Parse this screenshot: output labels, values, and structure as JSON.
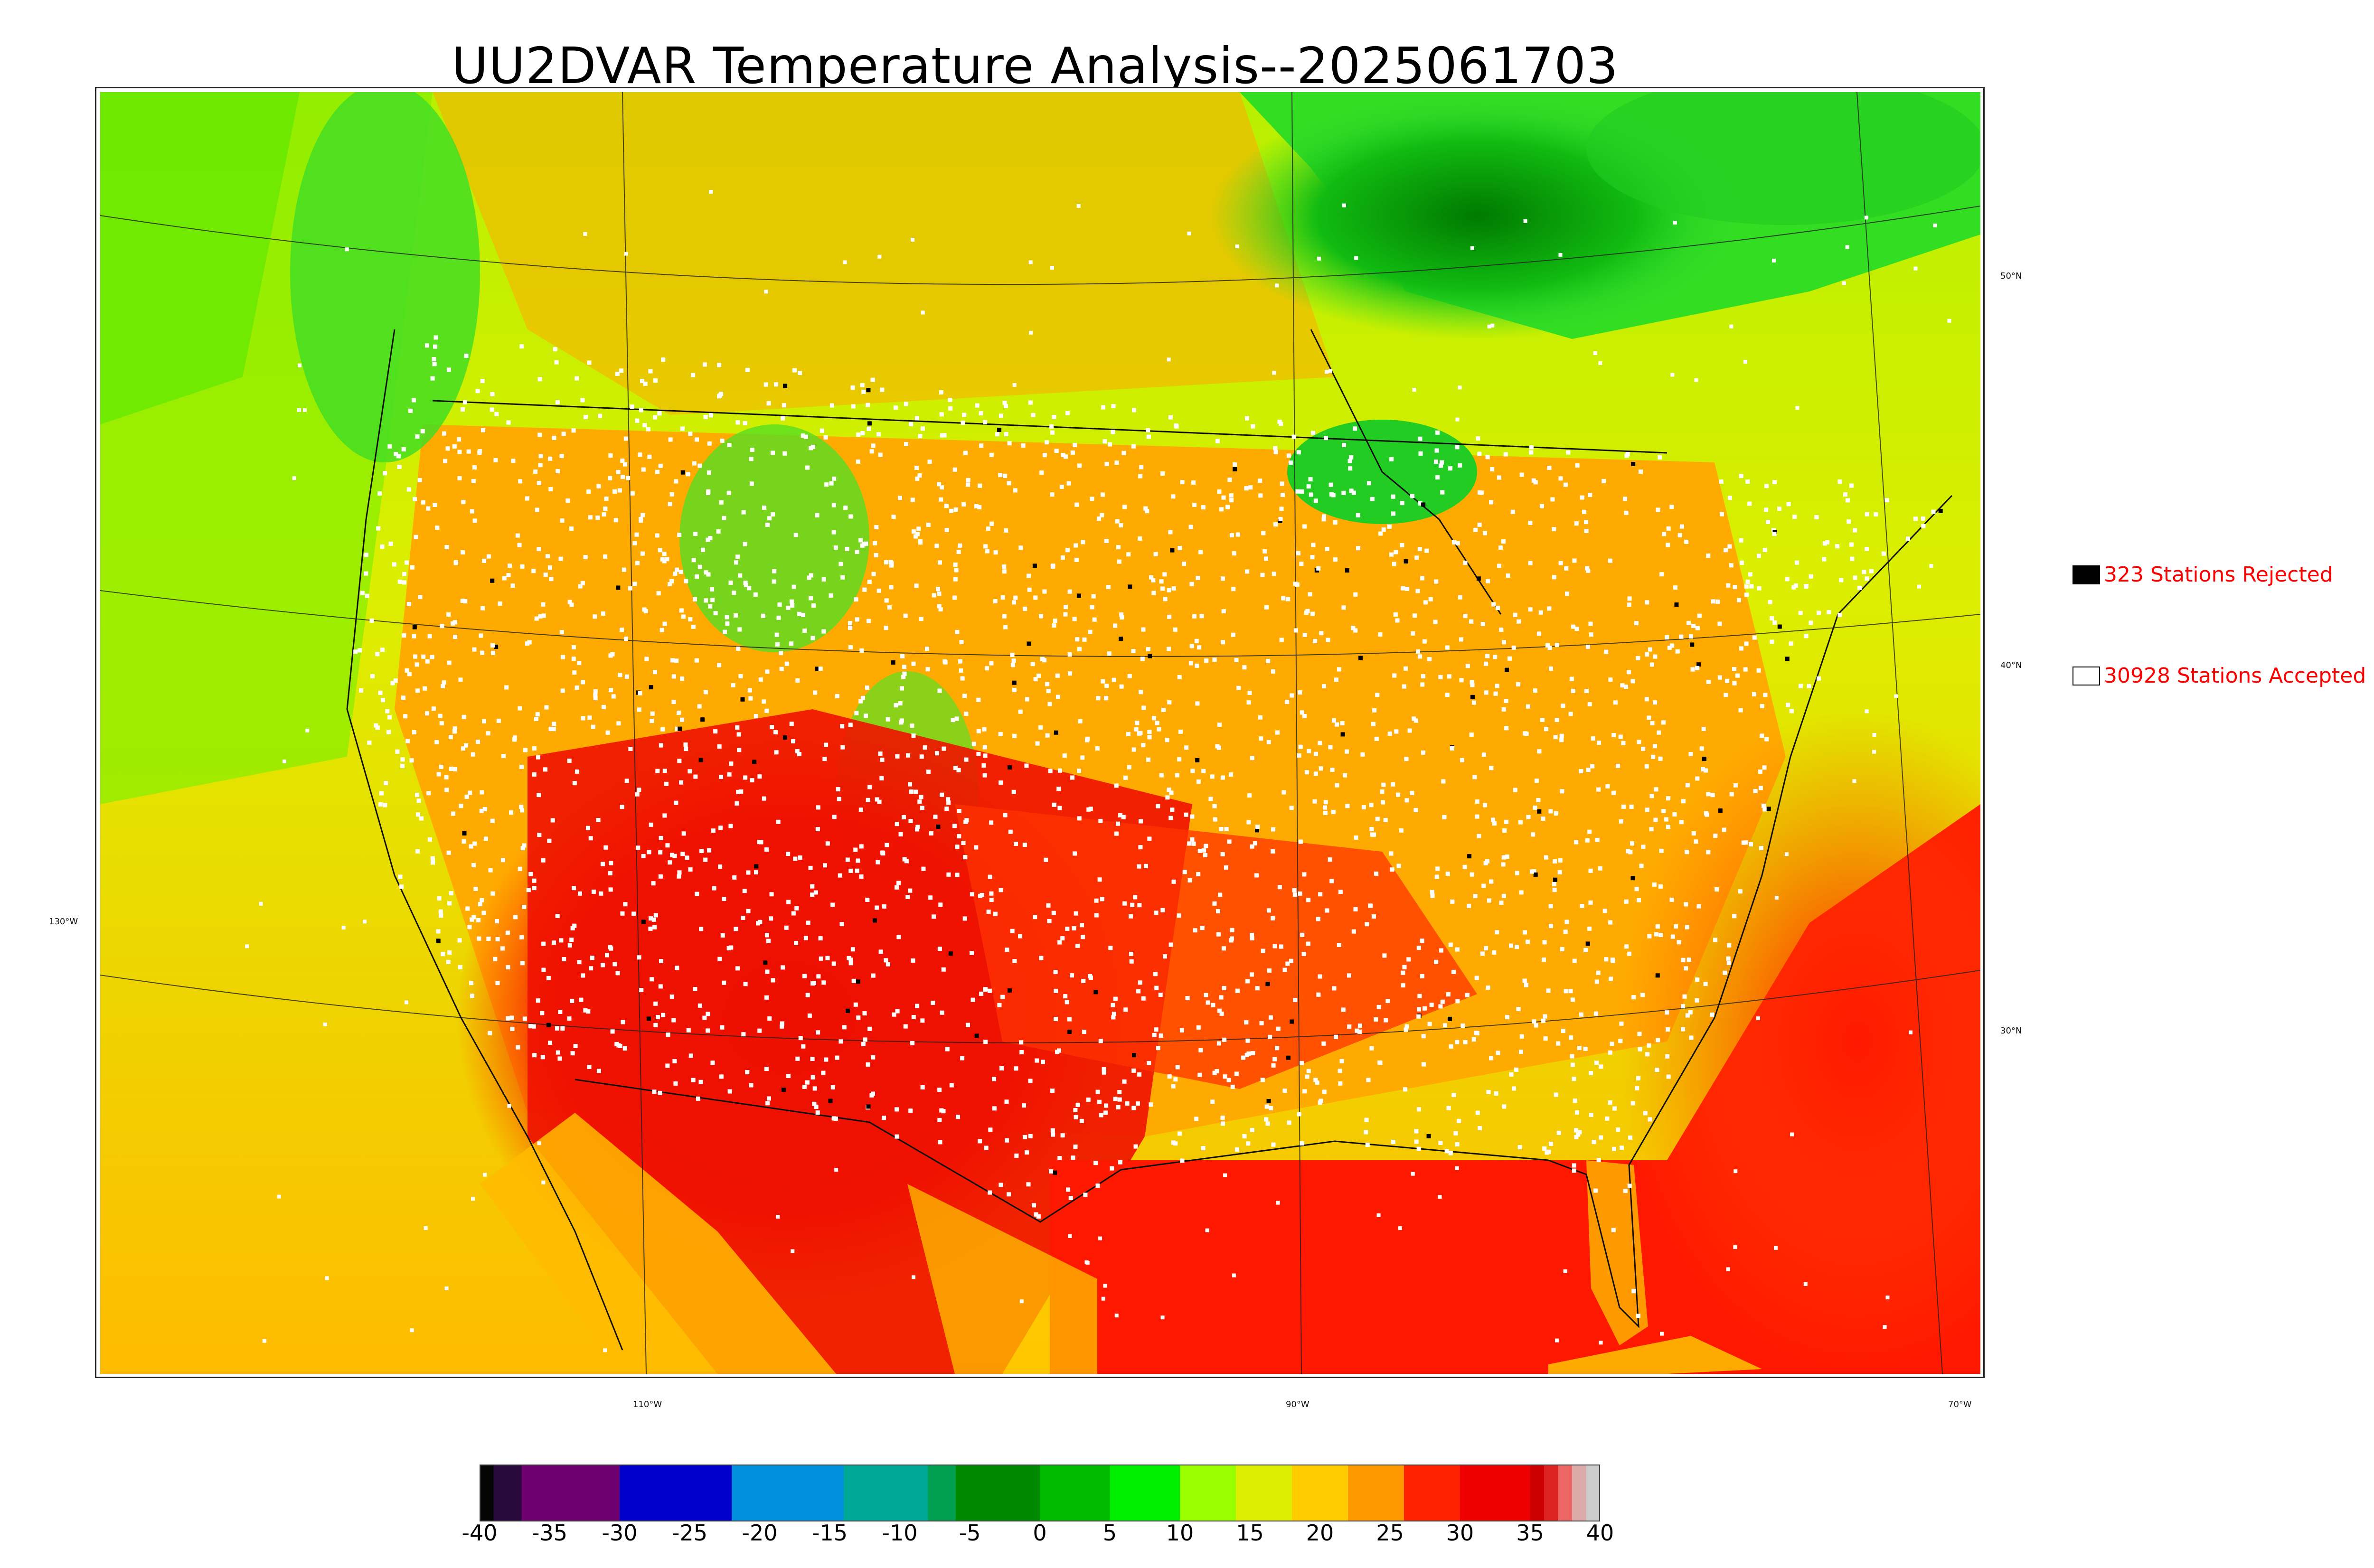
{
  "title": "UU2DVAR Temperature Analysis--2025061703",
  "map": {
    "lat_labels": [
      "50°N",
      "40°N",
      "30°N"
    ],
    "lon_labels": [
      "130°W",
      "110°W",
      "90°W",
      "70°W"
    ]
  },
  "legend": {
    "rejected": {
      "count": 323,
      "label": "323 Stations Rejected",
      "color": "#000000"
    },
    "accepted": {
      "count": 30928,
      "label": "30928 Stations Accepted",
      "color": "#ffffff"
    }
  },
  "colorbar": {
    "min": -40,
    "max": 40,
    "tick_labels": [
      "-40",
      "-35",
      "-30",
      "-25",
      "-20",
      "-15",
      "-10",
      "-5",
      "0",
      "5",
      "10",
      "15",
      "20",
      "25",
      "30",
      "35",
      "40"
    ],
    "stops": [
      {
        "from": -40,
        "to": -39,
        "color": "#050505"
      },
      {
        "from": -39,
        "to": -37,
        "color": "#2a0a3a"
      },
      {
        "from": -37,
        "to": -30,
        "color": "#6f006f"
      },
      {
        "from": -30,
        "to": -22,
        "color": "#0000cc"
      },
      {
        "from": -22,
        "to": -14,
        "color": "#0090dd"
      },
      {
        "from": -14,
        "to": -8,
        "color": "#00a898"
      },
      {
        "from": -8,
        "to": -6,
        "color": "#00a050"
      },
      {
        "from": -6,
        "to": 0,
        "color": "#008800"
      },
      {
        "from": 0,
        "to": 5,
        "color": "#00bb00"
      },
      {
        "from": 5,
        "to": 10,
        "color": "#00ee00"
      },
      {
        "from": 10,
        "to": 14,
        "color": "#99ff00"
      },
      {
        "from": 14,
        "to": 18,
        "color": "#ddee00"
      },
      {
        "from": 18,
        "to": 22,
        "color": "#ffcc00"
      },
      {
        "from": 22,
        "to": 26,
        "color": "#ff9900"
      },
      {
        "from": 26,
        "to": 30,
        "color": "#ff2200"
      },
      {
        "from": 30,
        "to": 35,
        "color": "#ee0000"
      },
      {
        "from": 35,
        "to": 36,
        "color": "#cc0000"
      },
      {
        "from": 36,
        "to": 37,
        "color": "#dd2222"
      },
      {
        "from": 37,
        "to": 38,
        "color": "#ee6666"
      },
      {
        "from": 38,
        "to": 39,
        "color": "#ddaaaa"
      },
      {
        "from": 39,
        "to": 40,
        "color": "#cccccc"
      }
    ]
  }
}
